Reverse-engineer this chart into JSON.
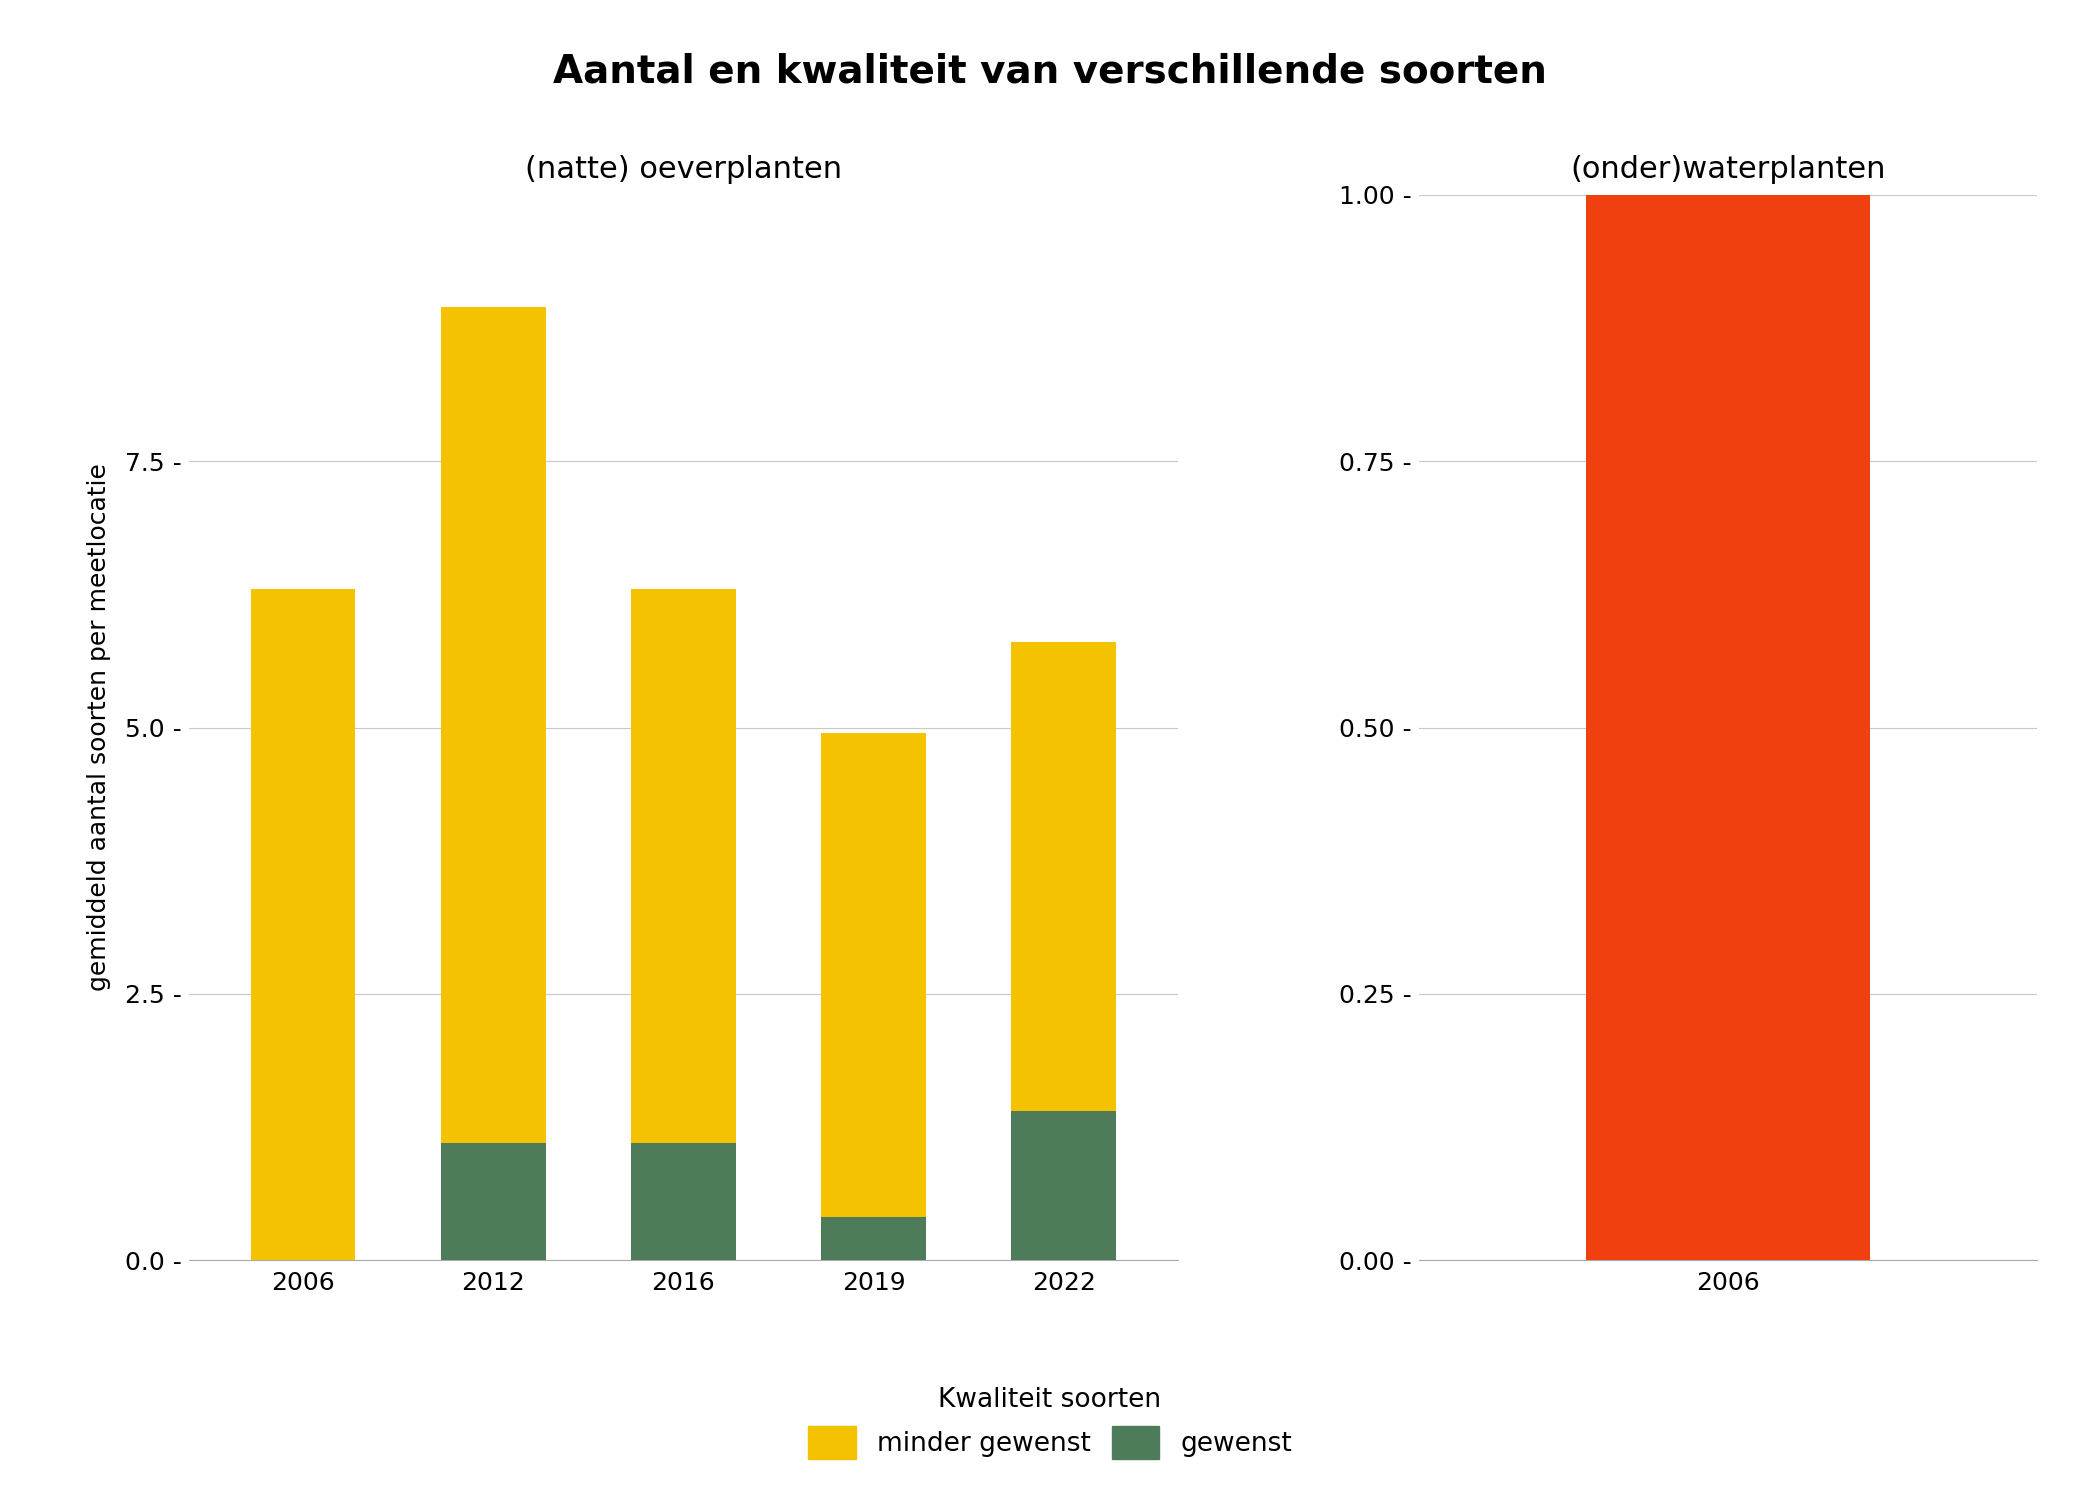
{
  "title": "Aantal en kwaliteit van verschillende soorten",
  "left_title": "(natte) oeverplanten",
  "right_title": "(onder)waterplanten",
  "ylabel": "gemiddeld aantal soorten per meetlocatie",
  "legend_title": "Kwaliteit soorten",
  "legend_labels": [
    "minder gewenst",
    "gewenst"
  ],
  "left_years": [
    "2006",
    "2012",
    "2016",
    "2019",
    "2022"
  ],
  "left_minder_gewenst": [
    6.3,
    7.85,
    5.2,
    4.55,
    4.4
  ],
  "left_gewenst": [
    0.0,
    1.1,
    1.1,
    0.4,
    1.4
  ],
  "left_ylim": [
    0,
    10
  ],
  "left_yticks": [
    0.0,
    2.5,
    5.0,
    7.5
  ],
  "right_years": [
    "2006"
  ],
  "right_minder_gewenst": [
    1.0
  ],
  "right_gewenst": [
    0.0
  ],
  "right_ylim": [
    0,
    1.0
  ],
  "right_yticks": [
    0.0,
    0.25,
    0.5,
    0.75,
    1.0
  ],
  "color_minder_gewenst_left": "#F5C200",
  "color_gewenst": "#4E7B5A",
  "color_minder_gewenst_right": "#F04010",
  "background_color": "#FFFFFF",
  "grid_color": "#C8C8C8",
  "bar_width": 0.55,
  "title_fontsize": 28,
  "subtitle_fontsize": 22,
  "tick_fontsize": 18,
  "ylabel_fontsize": 18,
  "legend_fontsize": 19
}
